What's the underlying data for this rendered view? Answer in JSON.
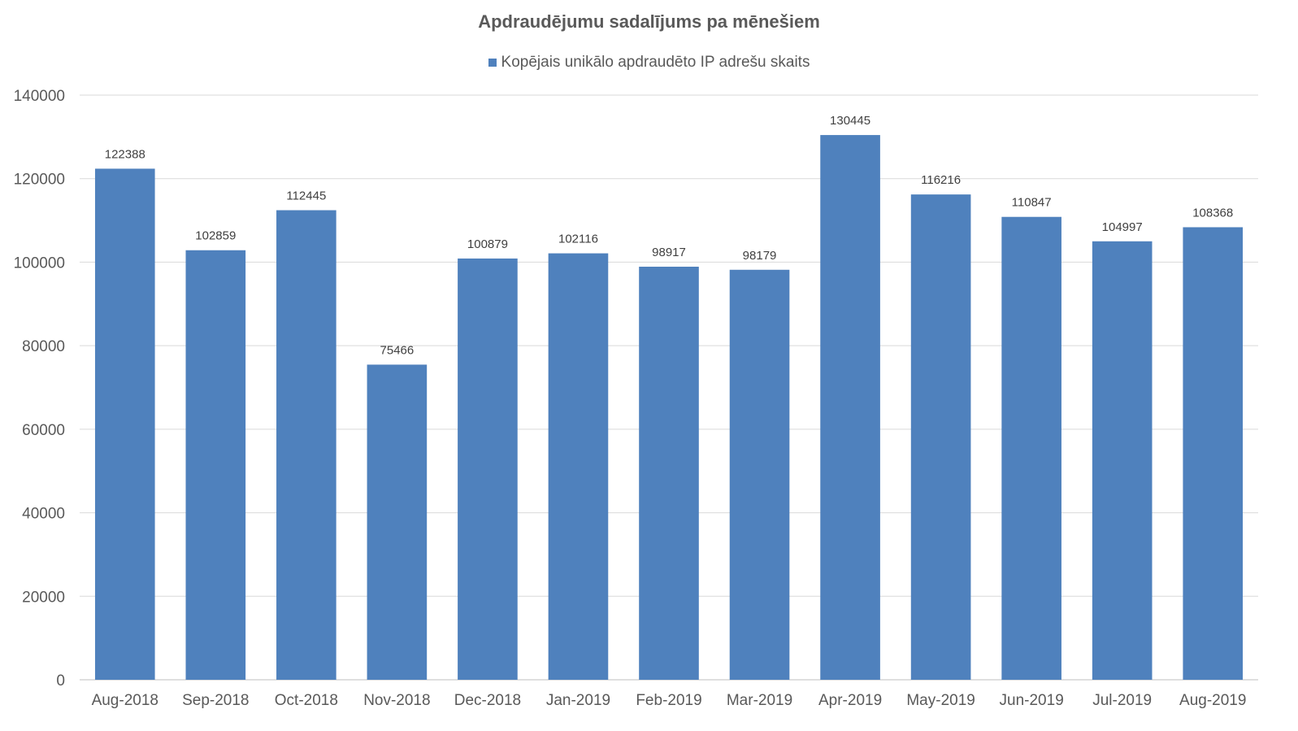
{
  "chart_data": {
    "type": "bar",
    "title": "Apdraudējumu sadalījums pa mēnešiem",
    "xlabel": "",
    "ylabel": "",
    "categories": [
      "Aug-2018",
      "Sep-2018",
      "Oct-2018",
      "Nov-2018",
      "Dec-2018",
      "Jan-2019",
      "Feb-2019",
      "Mar-2019",
      "Apr-2019",
      "May-2019",
      "Jun-2019",
      "Jul-2019",
      "Aug-2019"
    ],
    "series": [
      {
        "name": "Kopējais unikālo apdraudēto IP adrešu skaits",
        "values": [
          122388,
          102859,
          112445,
          75466,
          100879,
          102116,
          98917,
          98179,
          130445,
          116216,
          110847,
          104997,
          108368
        ],
        "color": "#4F81BD"
      }
    ],
    "ylim": [
      0,
      140000
    ],
    "yticks": [
      0,
      20000,
      40000,
      60000,
      80000,
      100000,
      120000,
      140000
    ],
    "grid": true,
    "legend_position": "top-center",
    "data_labels": true
  }
}
